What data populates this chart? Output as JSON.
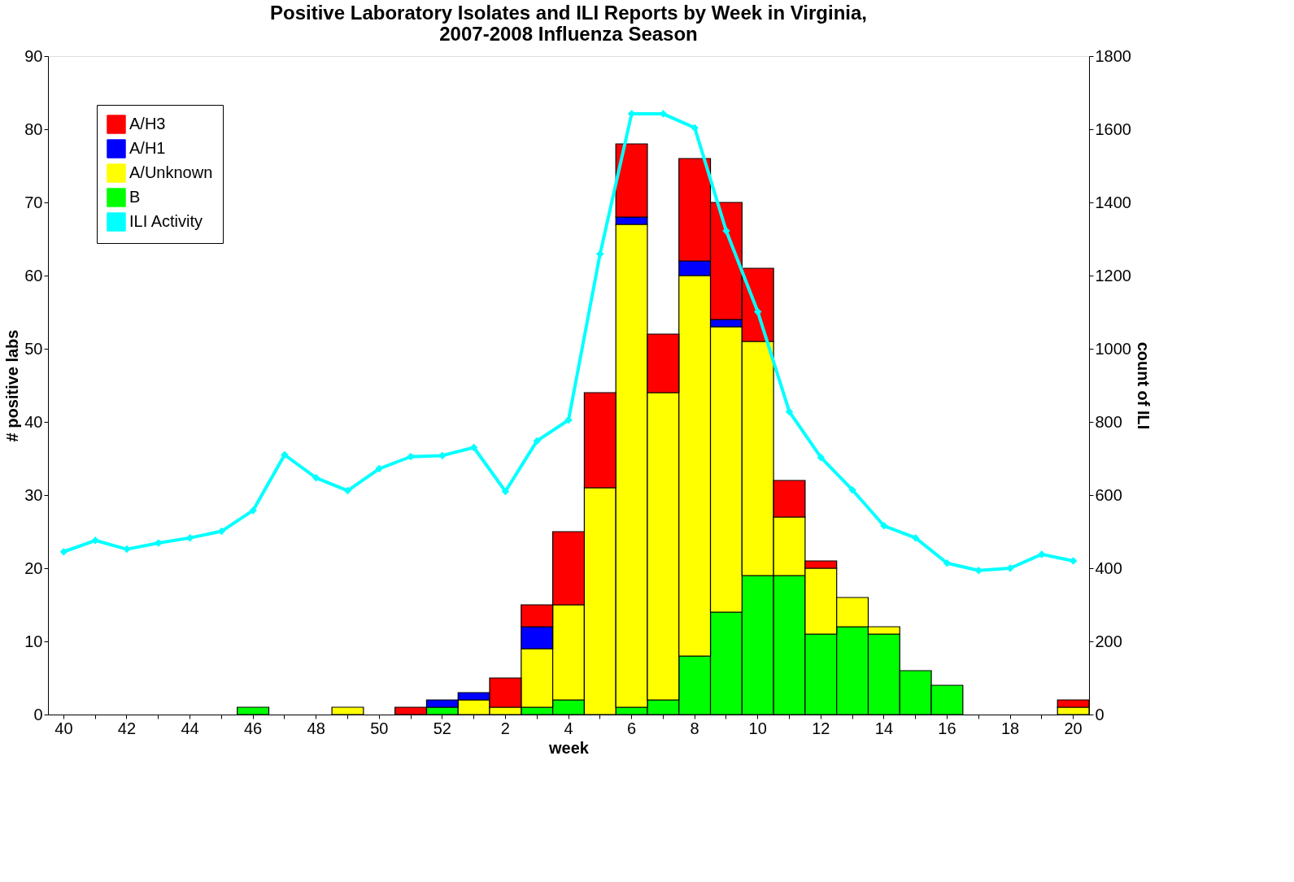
{
  "chart_data": {
    "type": "bar",
    "stacked": true,
    "title": "Positive Laboratory Isolates and ILI Reports by Week in Virginia,\n2007-2008 Influenza Season",
    "xlabel": "week",
    "ylabel": "# positive labs",
    "y2label": "count of ILI",
    "categories": [
      "40",
      null,
      "42",
      null,
      "44",
      null,
      "46",
      null,
      "48",
      null,
      "50",
      null,
      "52",
      null,
      "2",
      null,
      "4",
      null,
      "6",
      null,
      "8",
      null,
      "10",
      null,
      "12",
      null,
      "14",
      null,
      "16",
      null,
      "18",
      null,
      "20"
    ],
    "series": [
      {
        "name": "B",
        "color": "#00ff00",
        "values": [
          0,
          0,
          0,
          0,
          0,
          0,
          1,
          0,
          0,
          0,
          0,
          0,
          1,
          0,
          0,
          1,
          2,
          0,
          1,
          2,
          8,
          14,
          19,
          19,
          11,
          12,
          11,
          6,
          4,
          0,
          0,
          0,
          0
        ]
      },
      {
        "name": "A/Unknown",
        "color": "#ffff00",
        "values": [
          0,
          0,
          0,
          0,
          0,
          0,
          0,
          0,
          0,
          1,
          0,
          0,
          0,
          2,
          1,
          8,
          13,
          31,
          66,
          42,
          52,
          39,
          32,
          8,
          9,
          4,
          1,
          0,
          0,
          0,
          0,
          0,
          1
        ]
      },
      {
        "name": "A/H1",
        "color": "#0000ff",
        "values": [
          0,
          0,
          0,
          0,
          0,
          0,
          0,
          0,
          0,
          0,
          0,
          0,
          1,
          1,
          0,
          3,
          0,
          0,
          1,
          0,
          2,
          1,
          0,
          0,
          0,
          0,
          0,
          0,
          0,
          0,
          0,
          0,
          0
        ]
      },
      {
        "name": "A/H3",
        "color": "#ff0000",
        "values": [
          0,
          0,
          0,
          0,
          0,
          0,
          0,
          0,
          0,
          0,
          0,
          1,
          0,
          0,
          4,
          3,
          10,
          13,
          10,
          8,
          14,
          16,
          10,
          5,
          1,
          0,
          0,
          0,
          0,
          0,
          0,
          0,
          1
        ]
      },
      {
        "name": "ILI Activity",
        "type": "line",
        "axis": "y2",
        "color": "#00ffff",
        "marker": "diamond",
        "values": [
          445,
          476,
          452,
          469,
          483,
          501,
          558,
          710,
          647,
          612,
          672,
          705,
          708,
          730,
          610,
          748,
          805,
          1259,
          1642,
          1642,
          1604,
          1322,
          1101,
          828,
          703,
          614,
          516,
          483,
          414,
          394,
          400,
          438,
          420
        ]
      }
    ],
    "ylim": [
      0,
      90
    ],
    "yticks": [
      0,
      10,
      20,
      30,
      40,
      50,
      60,
      70,
      80,
      90
    ],
    "y2lim": [
      0,
      1800
    ],
    "y2ticks": [
      0,
      200,
      400,
      600,
      800,
      1000,
      1200,
      1400,
      1600,
      1800
    ],
    "legend": "top left",
    "grid": false
  }
}
